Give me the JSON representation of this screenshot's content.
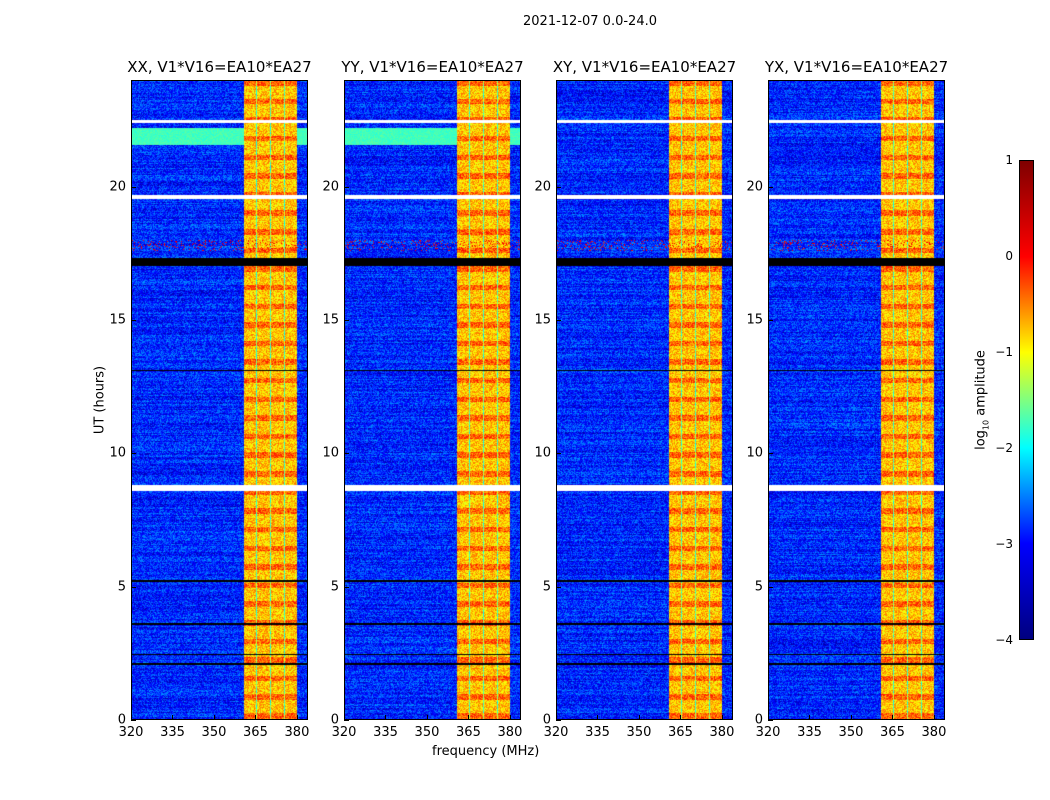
{
  "chart_data": {
    "type": "heatmap",
    "title": "2021-12-07 0.0-24.0",
    "xlabel": "frequency (MHz)",
    "ylabel": "UT (hours)",
    "xlim": [
      320,
      384
    ],
    "ylim": [
      0,
      24
    ],
    "xticks": [
      "320",
      "335",
      "350",
      "365",
      "380"
    ],
    "xtick_values": [
      320,
      335,
      350,
      365,
      380
    ],
    "yticks": [
      "0",
      "5",
      "10",
      "15",
      "20"
    ],
    "ytick_values": [
      0,
      5,
      10,
      15,
      20
    ],
    "panels": [
      {
        "title": "XX, V1*V16=EA10*EA27"
      },
      {
        "title": "YY, V1*V16=EA10*EA27"
      },
      {
        "title": "XY, V1*V16=EA10*EA27"
      },
      {
        "title": "YX, V1*V16=EA10*EA27"
      }
    ],
    "colorbar": {
      "label_main": "log",
      "label_sub": "10",
      "label_rest": " amplitude",
      "range": [
        -4,
        1
      ],
      "ticks": [
        "1",
        "0",
        "−1",
        "−2",
        "−3",
        "−4"
      ],
      "tick_values": [
        1,
        0,
        -1,
        -2,
        -3,
        -4
      ],
      "colormap": "jet"
    },
    "features": {
      "rfi_band_mhz": [
        360.5,
        380
      ],
      "band_level": -0.6,
      "background_level": -3.2,
      "flagged_hours_white": [
        [
          8.6,
          8.85
        ],
        [
          19.55,
          19.7
        ],
        [
          22.4,
          22.5
        ]
      ],
      "flagged_hours_black": [
        [
          17.05,
          17.35
        ],
        [
          2.1,
          2.15
        ],
        [
          2.45,
          2.5
        ],
        [
          3.6,
          3.65
        ],
        [
          5.2,
          5.25
        ],
        [
          13.1,
          13.15
        ]
      ],
      "cyan_hours": [
        [
          21.6,
          22.2
        ]
      ],
      "hot_hours": [
        [
          17.6,
          18.0
        ]
      ]
    }
  }
}
